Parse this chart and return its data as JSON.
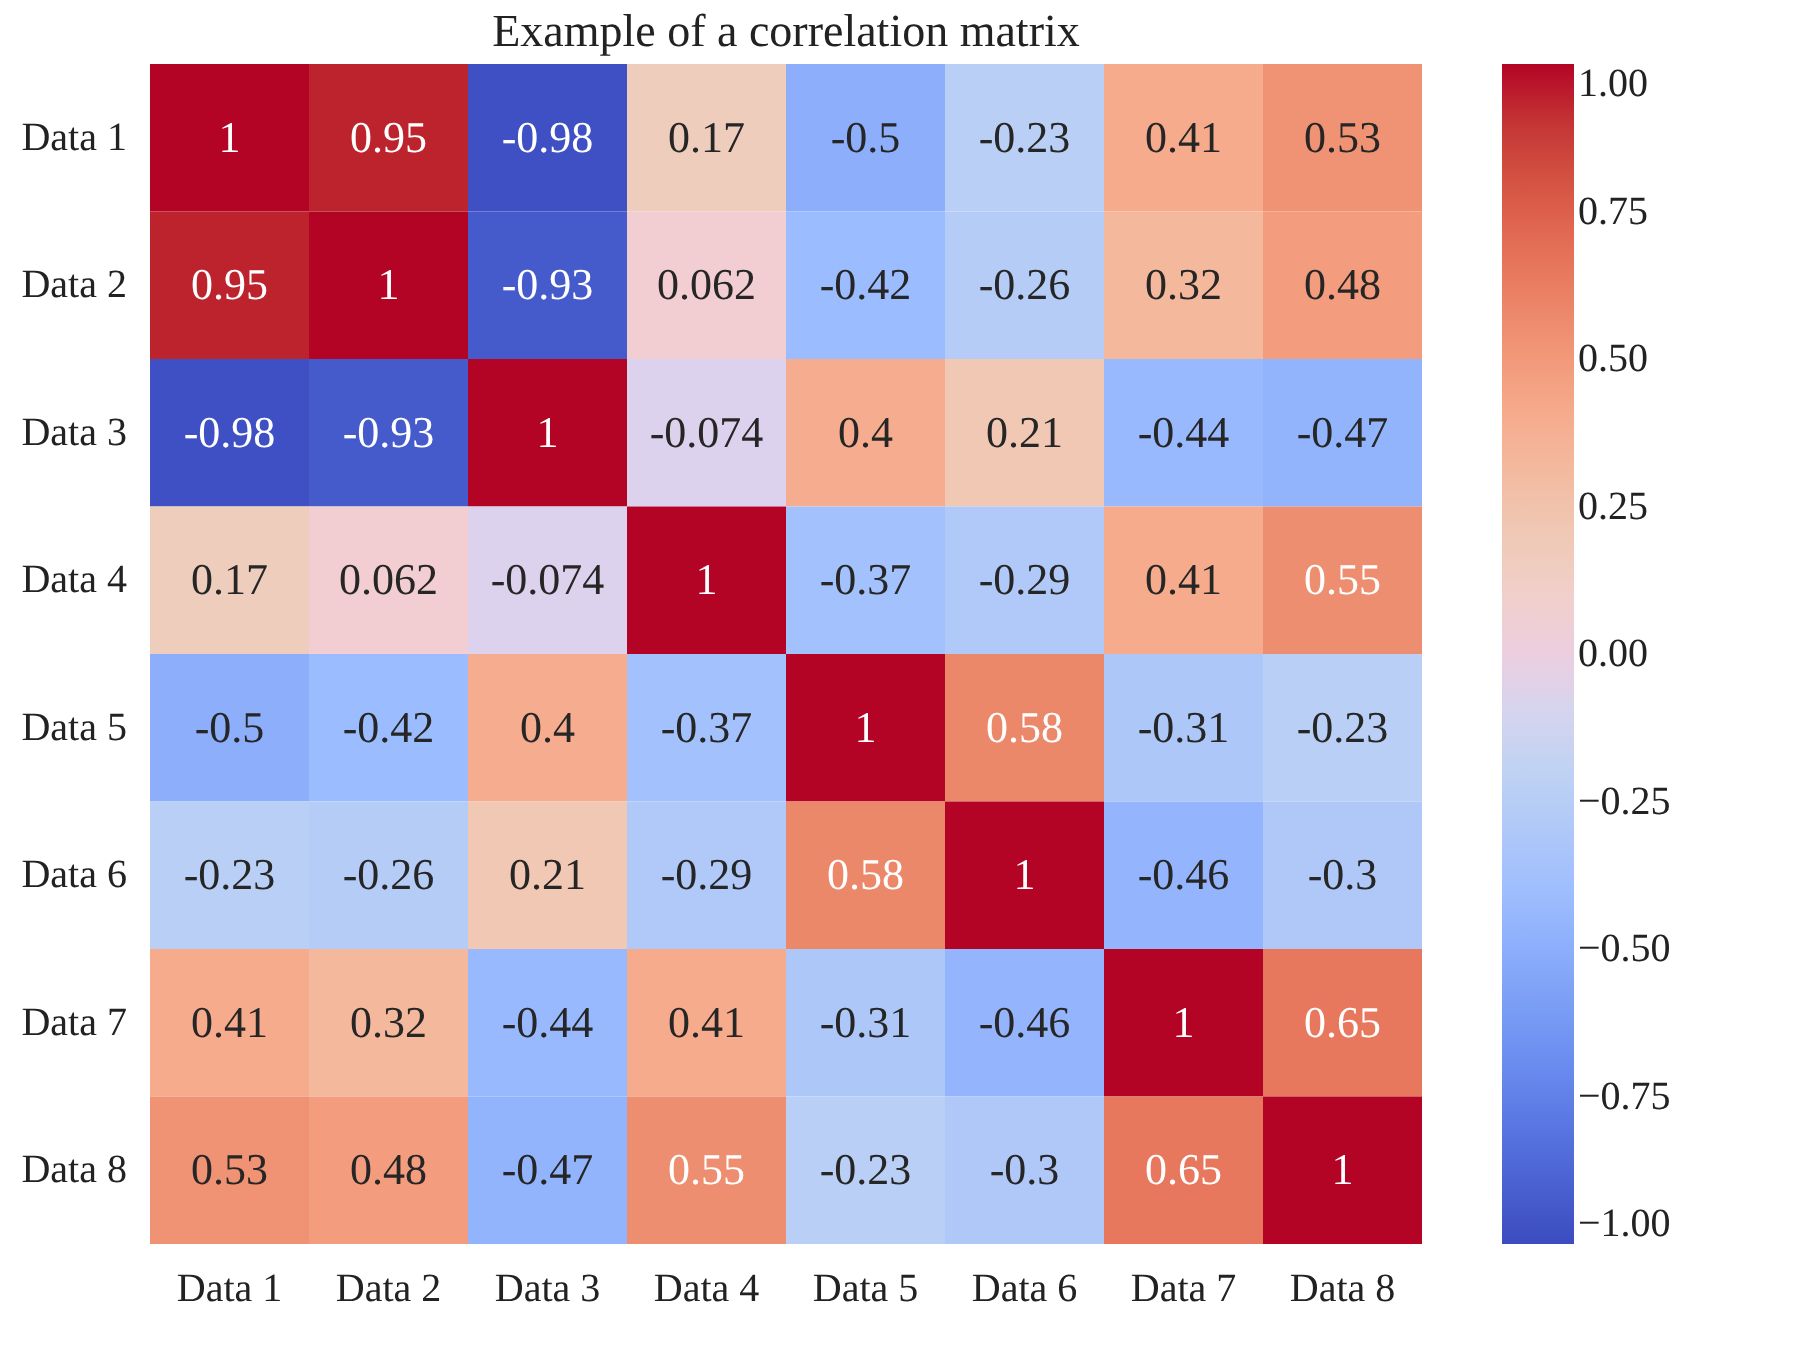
{
  "chart_data": {
    "type": "heatmap",
    "title": "Example of a correlation matrix",
    "categories": [
      "Data 1",
      "Data 2",
      "Data 3",
      "Data 4",
      "Data 5",
      "Data 6",
      "Data 7",
      "Data 8"
    ],
    "y_categories": [
      "Data 1",
      "Data 2",
      "Data 3",
      "Data 4",
      "Data 5",
      "Data 6",
      "Data 7",
      "Data 8"
    ],
    "cells": [
      [
        1,
        0.95,
        -0.98,
        0.17,
        -0.5,
        -0.23,
        0.41,
        0.53
      ],
      [
        0.95,
        1,
        -0.93,
        0.062,
        -0.42,
        -0.26,
        0.32,
        0.48
      ],
      [
        -0.98,
        -0.93,
        1,
        -0.074,
        0.4,
        0.21,
        -0.44,
        -0.47
      ],
      [
        0.17,
        0.062,
        -0.074,
        1,
        -0.37,
        -0.29,
        0.41,
        0.55
      ],
      [
        -0.5,
        -0.42,
        0.4,
        -0.37,
        1,
        0.58,
        -0.31,
        -0.23
      ],
      [
        -0.23,
        -0.26,
        0.21,
        -0.29,
        0.58,
        1,
        -0.46,
        -0.3
      ],
      [
        0.41,
        0.32,
        -0.44,
        0.41,
        -0.31,
        -0.46,
        1,
        0.65
      ],
      [
        0.53,
        0.48,
        -0.47,
        0.55,
        -0.23,
        -0.3,
        0.65,
        1
      ]
    ],
    "data_labels": true,
    "clim": [
      -1,
      1
    ],
    "cticks": [
      {
        "value": -1,
        "label": "−1.00"
      },
      {
        "value": -0.75,
        "label": "−0.75"
      },
      {
        "value": -0.5,
        "label": "−0.50"
      },
      {
        "value": -0.25,
        "label": "−0.25"
      },
      {
        "value": 0,
        "label": "0.00"
      },
      {
        "value": 0.25,
        "label": "0.25"
      },
      {
        "value": 0.5,
        "label": "0.50"
      },
      {
        "value": 0.75,
        "label": "0.75"
      },
      {
        "value": 1,
        "label": "1.00"
      }
    ]
  }
}
